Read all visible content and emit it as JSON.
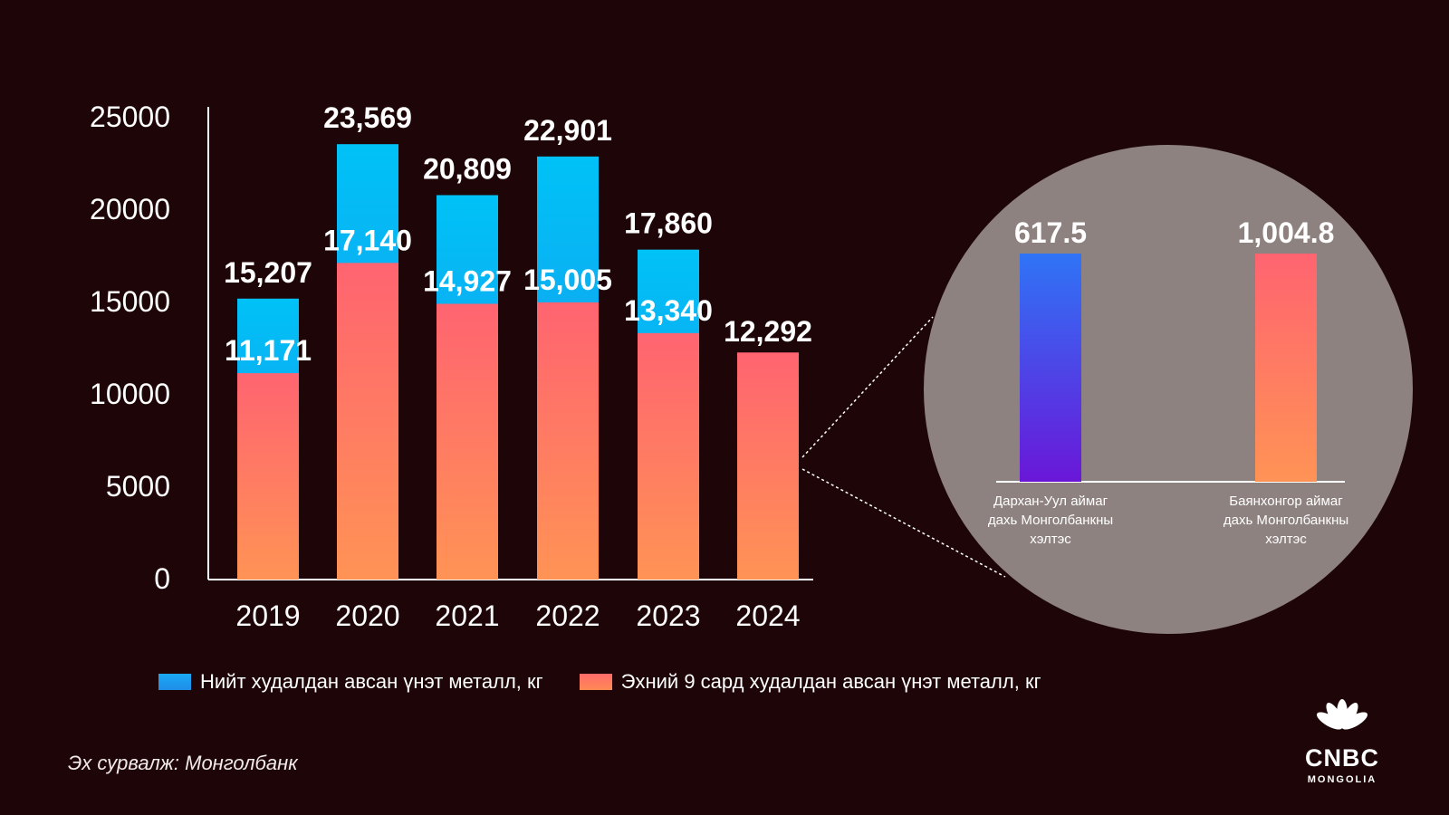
{
  "chart_data": [
    {
      "type": "bar",
      "stacked": false,
      "categories": [
        "2019",
        "2020",
        "2021",
        "2022",
        "2023",
        "2024"
      ],
      "series": [
        {
          "name": "Нийт худалдан авсан үнэт металл, кг",
          "values": [
            15207,
            23569,
            20809,
            22901,
            17860,
            null
          ],
          "data_labels": [
            "15,207",
            "23,569",
            "20,809",
            "22,901",
            "17,860",
            ""
          ],
          "color": "#1aa9f5"
        },
        {
          "name": "Эхний 9 сард худалдан авсан үнэт металл, кг",
          "values": [
            11171,
            17140,
            14927,
            15005,
            13340,
            12292
          ],
          "data_labels": [
            "11,171",
            "17,140",
            "14,927",
            "15,005",
            "13,340",
            "12,292"
          ],
          "color": "#ff6f6a"
        }
      ],
      "ylim": [
        0,
        25000
      ],
      "yticks": [
        "25000",
        "20000",
        "15000",
        "10000",
        "5000",
        "0"
      ],
      "ytick_values": [
        25000,
        20000,
        15000,
        10000,
        5000,
        0
      ],
      "grid": false,
      "legend_position": "bottom"
    },
    {
      "type": "bar",
      "categories": [
        "Дархан-Уул аймаг дахь Монголбанкны хэлтэс",
        "Баянхонгор аймаг дахь Монголбанкны хэлтэс"
      ],
      "category_lines": [
        [
          "Дархан-Уул аймаг",
          "дахь Монголбанкны",
          "хэлтэс"
        ],
        [
          "Баянхонгор аймаг",
          "дахь Монголбанкны",
          "хэлтэс"
        ]
      ],
      "values": [
        617.5,
        1004.8
      ],
      "data_labels": [
        "617.5",
        "1,004.8"
      ],
      "colors": [
        "#3a6cf5",
        "#ff6f6a"
      ]
    }
  ],
  "legend": {
    "total_label": "Нийт худалдан авсан үнэт металл, кг",
    "nine_label": "Эхний 9 сард худалдан авсан үнэт металл, кг"
  },
  "source": "Эх сурвалж: Монголбанк",
  "logo": {
    "word": "CNBC",
    "sub": "MONGOLIA"
  }
}
